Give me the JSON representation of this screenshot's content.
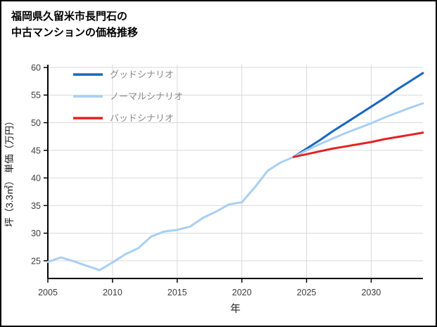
{
  "page": {
    "title_lines": [
      "福岡県久留米市長門石の",
      "中古マンションの価格推移"
    ]
  },
  "chart_data": {
    "type": "line",
    "title": "福岡県久留米市長門石の中古マンションの価格推移",
    "xlabel": "年",
    "ylabel": "坪（3.3㎡） 単価（万円）",
    "xlim": [
      2005,
      2034
    ],
    "ylim": [
      21.8,
      60.5
    ],
    "xticks": [
      2005,
      2010,
      2015,
      2020,
      2025,
      2030
    ],
    "yticks": [
      25,
      30,
      35,
      40,
      45,
      50,
      55,
      60
    ],
    "grid": true,
    "grid_color": "#d9d9d9",
    "axis_color": "#000000",
    "tick_label_color": "#3d3d3d",
    "legend_position": "top-left",
    "legend_text_color": "#8a8a8a",
    "series": [
      {
        "name": "グッドシナリオ",
        "color": "#1767bf",
        "width": 3,
        "x": [
          2024,
          2025,
          2026,
          2027,
          2028,
          2029,
          2030,
          2031,
          2032,
          2033,
          2034
        ],
        "y": [
          43.8,
          45.3,
          46.8,
          48.4,
          49.9,
          51.4,
          52.9,
          54.4,
          56.0,
          57.5,
          59.0
        ]
      },
      {
        "name": "ノーマルシナリオ",
        "color": "#a9cff3",
        "width": 3,
        "x": [
          2005,
          2006,
          2007,
          2008,
          2009,
          2010,
          2011,
          2012,
          2013,
          2014,
          2015,
          2016,
          2017,
          2018,
          2019,
          2020,
          2021,
          2022,
          2023,
          2024,
          2025,
          2026,
          2027,
          2028,
          2029,
          2030,
          2031,
          2032,
          2033,
          2034
        ],
        "y": [
          24.8,
          25.6,
          24.9,
          24.1,
          23.3,
          24.7,
          26.2,
          27.3,
          29.4,
          30.3,
          30.6,
          31.2,
          32.8,
          33.9,
          35.2,
          35.6,
          38.3,
          41.3,
          42.8,
          43.8,
          45.0,
          46.1,
          47.1,
          48.1,
          49.0,
          49.9,
          50.9,
          51.8,
          52.7,
          53.5
        ]
      },
      {
        "name": "バッドシナリオ",
        "color": "#e32222",
        "width": 3,
        "x": [
          2024,
          2025,
          2026,
          2027,
          2028,
          2029,
          2030,
          2031,
          2032,
          2033,
          2034
        ],
        "y": [
          43.8,
          44.3,
          44.8,
          45.3,
          45.7,
          46.1,
          46.5,
          47.0,
          47.4,
          47.8,
          48.2
        ]
      }
    ]
  }
}
